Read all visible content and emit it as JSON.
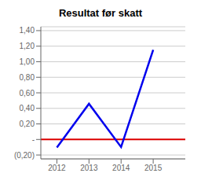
{
  "chart_data": {
    "type": "line",
    "title": "Resultat før skatt",
    "series": [
      {
        "x": [
          2012,
          2013,
          2014,
          2015
        ],
        "values": [
          -0.103,
          0.459,
          -0.097,
          1.152
        ],
        "color": "#0000EE"
      },
      {
        "x": [
          2011.5,
          2016.0
        ],
        "values": [
          0.0,
          0.0
        ],
        "color": "#DD0000"
      }
    ],
    "xlim": [
      2011.5,
      2016.0
    ],
    "xticks": [
      2012,
      2013,
      2014,
      2015
    ],
    "ylim": [
      -0.25,
      1.45
    ],
    "yticks": [
      {
        "value": -0.2,
        "label": "(0,20)"
      },
      {
        "value": 0.0,
        "label": "-"
      },
      {
        "value": 0.2,
        "label": "0,20"
      },
      {
        "value": 0.4,
        "label": "0,40"
      },
      {
        "value": 0.6,
        "label": "0,60"
      },
      {
        "value": 0.8,
        "label": "0,80"
      },
      {
        "value": 1.0,
        "label": "1,00"
      },
      {
        "value": 1.2,
        "label": "1,20"
      },
      {
        "value": 1.4,
        "label": "1,40"
      }
    ],
    "grid": "y"
  }
}
